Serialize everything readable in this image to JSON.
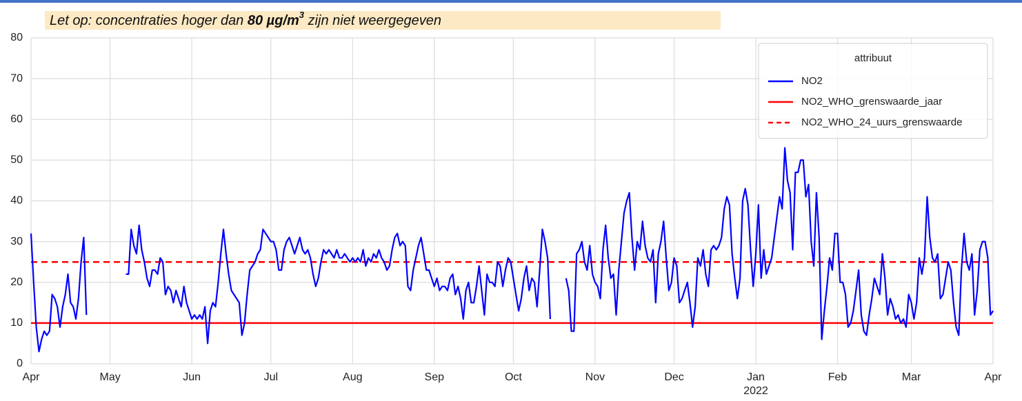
{
  "chart_data": {
    "type": "line",
    "note": {
      "before": "Let  op: concentraties hoger dan ",
      "bold": "80 µg/m",
      "sup": "3",
      "after": " zijn niet weergegeven"
    },
    "legend_title": "attribuut",
    "legend": "upper right",
    "grid": true,
    "xlim": [
      0,
      365
    ],
    "xticks": [
      {
        "value": 0,
        "label": "Apr"
      },
      {
        "value": 30,
        "label": "May"
      },
      {
        "value": 61,
        "label": "Jun"
      },
      {
        "value": 91,
        "label": "Jul"
      },
      {
        "value": 122,
        "label": "Aug"
      },
      {
        "value": 153,
        "label": "Sep"
      },
      {
        "value": 183,
        "label": "Oct"
      },
      {
        "value": 214,
        "label": "Nov"
      },
      {
        "value": 244,
        "label": "Dec"
      },
      {
        "value": 275,
        "label": "Jan",
        "sublabel": "2022"
      },
      {
        "value": 306,
        "label": "Feb"
      },
      {
        "value": 334,
        "label": "Mar"
      },
      {
        "value": 365,
        "label": "Apr"
      }
    ],
    "ylim": [
      0,
      80
    ],
    "yticks": [
      0,
      10,
      20,
      30,
      40,
      50,
      60,
      70,
      80
    ],
    "x": [
      0,
      1,
      2,
      3,
      4,
      5,
      6,
      7,
      8,
      9,
      10,
      11,
      12,
      13,
      14,
      15,
      16,
      17,
      18,
      19,
      20,
      21,
      22,
      23,
      24,
      25,
      26,
      27,
      28,
      29,
      30,
      31,
      32,
      33,
      34,
      35,
      36,
      37,
      38,
      39,
      40,
      41,
      42,
      43,
      44,
      45,
      46,
      47,
      48,
      49,
      50,
      51,
      52,
      53,
      54,
      55,
      56,
      57,
      58,
      59,
      60,
      61,
      62,
      63,
      64,
      65,
      66,
      67,
      68,
      69,
      70,
      71,
      72,
      73,
      74,
      75,
      76,
      77,
      78,
      79,
      80,
      81,
      82,
      83,
      84,
      85,
      86,
      87,
      88,
      89,
      90,
      91,
      92,
      93,
      94,
      95,
      96,
      97,
      98,
      99,
      100,
      101,
      102,
      103,
      104,
      105,
      106,
      107,
      108,
      109,
      110,
      111,
      112,
      113,
      114,
      115,
      116,
      117,
      118,
      119,
      120,
      121,
      122,
      123,
      124,
      125,
      126,
      127,
      128,
      129,
      130,
      131,
      132,
      133,
      134,
      135,
      136,
      137,
      138,
      139,
      140,
      141,
      142,
      143,
      144,
      145,
      146,
      147,
      148,
      149,
      150,
      151,
      152,
      153,
      154,
      155,
      156,
      157,
      158,
      159,
      160,
      161,
      162,
      163,
      164,
      165,
      166,
      167,
      168,
      169,
      170,
      171,
      172,
      173,
      174,
      175,
      176,
      177,
      178,
      179,
      180,
      181,
      182,
      183,
      184,
      185,
      186,
      187,
      188,
      189,
      190,
      191,
      192,
      193,
      194,
      195,
      196,
      197,
      198,
      199,
      200,
      201,
      202,
      203,
      204,
      205,
      206,
      207,
      208,
      209,
      210,
      211,
      212,
      213,
      214,
      215,
      216,
      217,
      218,
      219,
      220,
      221,
      222,
      223,
      224,
      225,
      226,
      227,
      228,
      229,
      230,
      231,
      232,
      233,
      234,
      235,
      236,
      237,
      238,
      239,
      240,
      241,
      242,
      243,
      244,
      245,
      246,
      247,
      248,
      249,
      250,
      251,
      252,
      253,
      254,
      255,
      256,
      257,
      258,
      259,
      260,
      261,
      262,
      263,
      264,
      265,
      266,
      267,
      268,
      269,
      270,
      271,
      272,
      273,
      274,
      275,
      276,
      277,
      278,
      279,
      280,
      281,
      282,
      283,
      284,
      285,
      286,
      287,
      288,
      289,
      290,
      291,
      292,
      293,
      294,
      295,
      296,
      297,
      298,
      299,
      300,
      301,
      302,
      303,
      304,
      305,
      306,
      307,
      308,
      309,
      310,
      311,
      312,
      313,
      314,
      315,
      316,
      317,
      318,
      319,
      320,
      321,
      322,
      323,
      324,
      325,
      326,
      327,
      328,
      329,
      330,
      331,
      332,
      333,
      334,
      335,
      336,
      337,
      338,
      339,
      340,
      341,
      342,
      343,
      344,
      345,
      346,
      347,
      348,
      349,
      350,
      351,
      352,
      353,
      354,
      355,
      356,
      357,
      358,
      359,
      360,
      361,
      362,
      363,
      364,
      365
    ],
    "series": [
      {
        "name": "NO2",
        "color": "#0000ff",
        "values": [
          32,
          20,
          9,
          3,
          6,
          8,
          7,
          8,
          17,
          16,
          14,
          9,
          14,
          17,
          22,
          15,
          14,
          11,
          16,
          25,
          31,
          12,
          null,
          null,
          null,
          null,
          null,
          null,
          null,
          null,
          null,
          null,
          null,
          null,
          null,
          null,
          22,
          22,
          33,
          29,
          27,
          34,
          28,
          25,
          21,
          19,
          23,
          23,
          22,
          26,
          25,
          17,
          19,
          18,
          15,
          18,
          16,
          14,
          19,
          15,
          13,
          11,
          12,
          11,
          12,
          11,
          14,
          5,
          13,
          15,
          14,
          20,
          27,
          33,
          27,
          22,
          18,
          17,
          16,
          15,
          7,
          10,
          17,
          23,
          24,
          25,
          27,
          28,
          33,
          32,
          31,
          30,
          30,
          28,
          23,
          23,
          28,
          30,
          31,
          29,
          27,
          29,
          31,
          28,
          27,
          28,
          26,
          22,
          19,
          21,
          25,
          28,
          27,
          28,
          27,
          26,
          28,
          26,
          26,
          27,
          26,
          25,
          26,
          25,
          26,
          25,
          28,
          24,
          26,
          25,
          27,
          26,
          28,
          26,
          25,
          23,
          24,
          28,
          31,
          32,
          29,
          30,
          29,
          19,
          18,
          23,
          26,
          29,
          31,
          27,
          23,
          23,
          21,
          19,
          21,
          18,
          19,
          19,
          18,
          21,
          22,
          17,
          19,
          16,
          11,
          18,
          20,
          15,
          15,
          19,
          24,
          18,
          12,
          22,
          20,
          20,
          19,
          25,
          24,
          19,
          23,
          26,
          25,
          21,
          17,
          13,
          16,
          21,
          24,
          18,
          21,
          20,
          14,
          23,
          33,
          30,
          26,
          11,
          null,
          null,
          null,
          null,
          null,
          21,
          18,
          8,
          8,
          27,
          28,
          30,
          25,
          23,
          29,
          22,
          20,
          19,
          16,
          28,
          34,
          26,
          21,
          22,
          12,
          23,
          30,
          37,
          40,
          42,
          31,
          23,
          30,
          28,
          35,
          29,
          26,
          25,
          28,
          15,
          27,
          30,
          35,
          26,
          18,
          20,
          26,
          24,
          15,
          16,
          18,
          20,
          15,
          9,
          14,
          26,
          24,
          28,
          22,
          19,
          28,
          29,
          28,
          29,
          31,
          38,
          41,
          39,
          27,
          21,
          16,
          21,
          40,
          43,
          39,
          28,
          19,
          27,
          39,
          21,
          28,
          22,
          24,
          26,
          31,
          36,
          41,
          38,
          53,
          45,
          42,
          28,
          47,
          47,
          50,
          50,
          41,
          44,
          30,
          24,
          42,
          31,
          6,
          13,
          19,
          26,
          23,
          32,
          32,
          20,
          20,
          17,
          9,
          10,
          13,
          18,
          23,
          12,
          8,
          7,
          12,
          16,
          21,
          19,
          17,
          27,
          21,
          12,
          16,
          14,
          11,
          12,
          10,
          11,
          9,
          17,
          15,
          11,
          15,
          26,
          22,
          26,
          41,
          31,
          26,
          25,
          27,
          16,
          17,
          21,
          25,
          23,
          15,
          9,
          7,
          23,
          32,
          25,
          23,
          27,
          12,
          18,
          28,
          30,
          30,
          26,
          12,
          13
        ]
      }
    ],
    "hlines": [
      {
        "name": "NO2_WHO_grenswaarde_jaar",
        "color": "#ff0000",
        "value": 10,
        "dash": false
      },
      {
        "name": "NO2_WHO_24_uurs_grenswaarde",
        "color": "#ff0000",
        "value": 25,
        "dash": true
      }
    ]
  }
}
